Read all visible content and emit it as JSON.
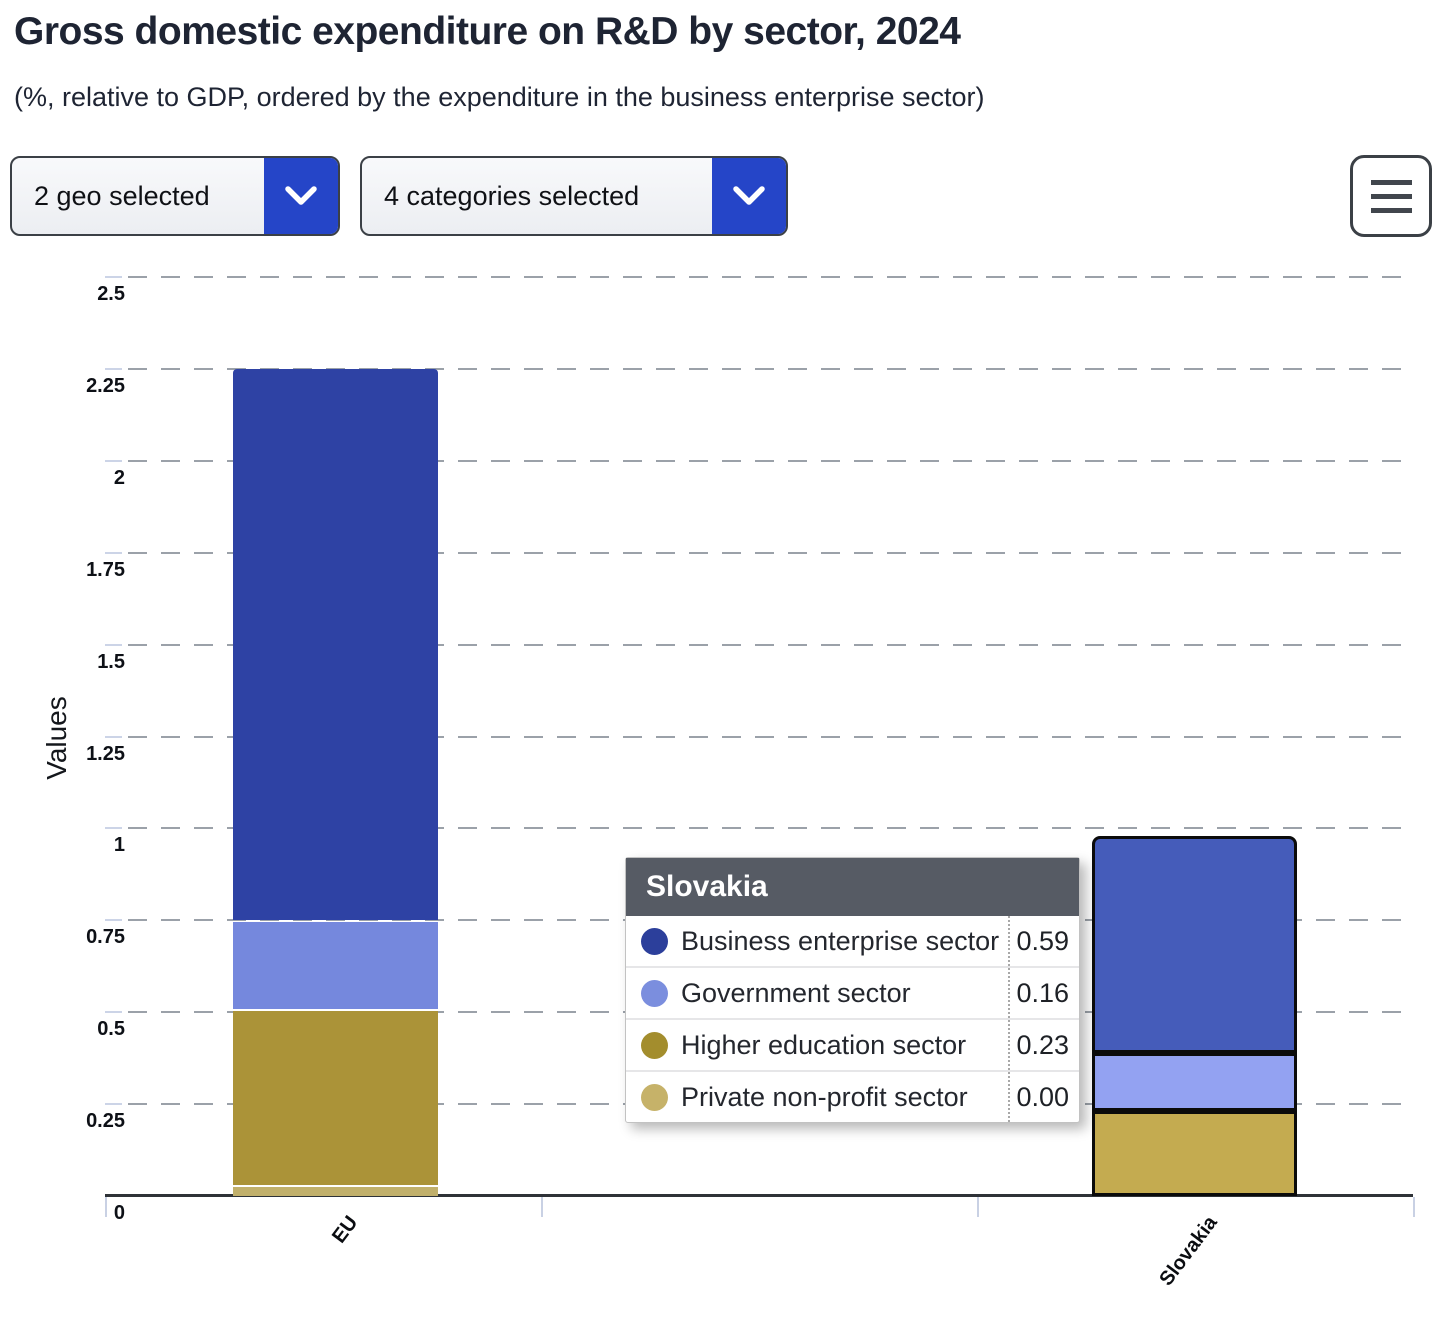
{
  "header": {
    "title": "Gross domestic expenditure on R&D by sector, 2024",
    "subtitle": "(%, relative to GDP, ordered by the expenditure in the business enterprise sector)"
  },
  "controls": {
    "geo_dropdown": {
      "label": "2 geo selected",
      "icon": "chevron-down-icon",
      "accent_color": "#2545c8"
    },
    "categories_dropdown": {
      "label": "4 categories selected",
      "icon": "chevron-down-icon",
      "accent_color": "#2545c8"
    },
    "menu_button": {
      "icon": "hamburger-icon"
    }
  },
  "chart_data": {
    "type": "bar",
    "stacked": true,
    "title": "Gross domestic expenditure on R&D by sector, 2024",
    "xlabel": "",
    "ylabel": "Values",
    "ylim": [
      0,
      2.5
    ],
    "yticks": [
      0,
      0.25,
      0.5,
      0.75,
      1,
      1.25,
      1.5,
      1.75,
      2,
      2.25,
      2.5
    ],
    "ytick_labels": [
      "0",
      "0.25",
      "0.5",
      "0.75",
      "1",
      "1.25",
      "1.5",
      "1.75",
      "2",
      "2.25",
      "2.5"
    ],
    "grid": "horizontal-dashed",
    "categories": [
      "EU",
      "Slovakia"
    ],
    "series": [
      {
        "name": "Business enterprise sector",
        "color": "#2e42a4",
        "hover_color": "#455cba",
        "values": [
          1.5,
          0.59
        ]
      },
      {
        "name": "Government sector",
        "color": "#7588dd",
        "hover_color": "#93a2f2",
        "values": [
          0.24,
          0.16
        ]
      },
      {
        "name": "Higher education sector",
        "color": "#ab9338",
        "hover_color": "#c4ab50",
        "values": [
          0.48,
          0.23
        ]
      },
      {
        "name": "Private non-profit sector",
        "color": "#c1b06b",
        "hover_color": "#d6c279",
        "values": [
          0.03,
          0.0
        ]
      }
    ],
    "stack_order_bottom_to_top": [
      "Private non-profit sector",
      "Higher education sector",
      "Government sector",
      "Business enterprise sector"
    ],
    "highlighted_category": "Slovakia"
  },
  "tooltip": {
    "title": "Slovakia",
    "rows": [
      {
        "label": "Business enterprise sector",
        "value": "0.59",
        "color": "#2c3f9b"
      },
      {
        "label": "Government sector",
        "value": "0.16",
        "color": "#7b8ede"
      },
      {
        "label": "Higher education sector",
        "value": "0.23",
        "color": "#a38d2d"
      },
      {
        "label": "Private non-profit sector",
        "value": "0.00",
        "color": "#c6b269"
      }
    ]
  }
}
